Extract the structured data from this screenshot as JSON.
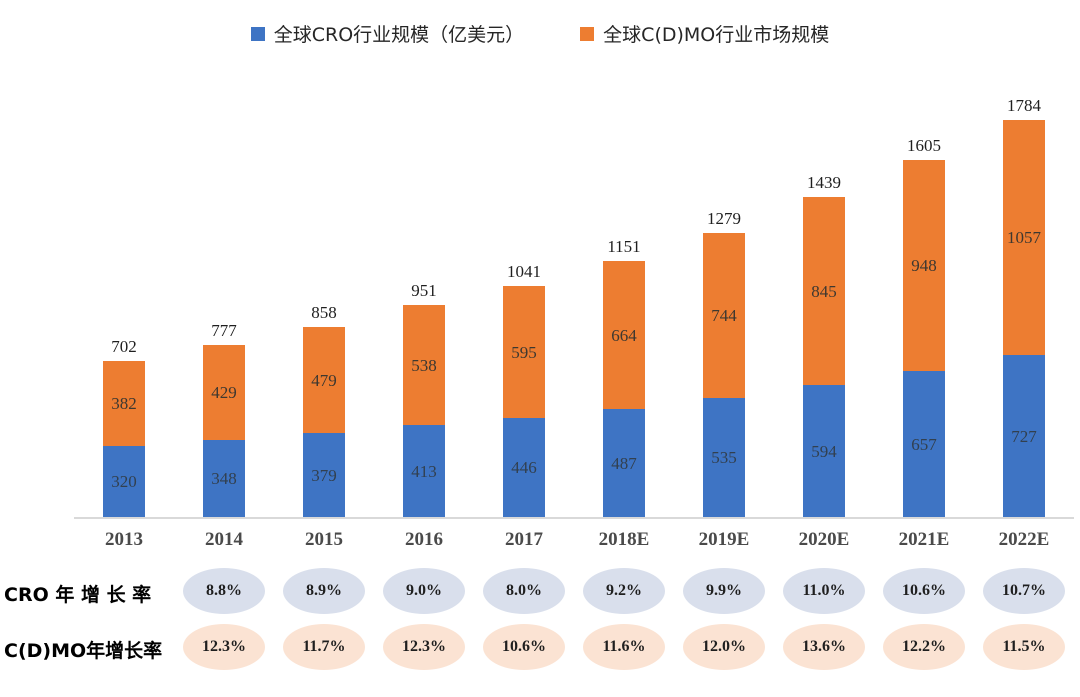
{
  "legend": {
    "items": [
      {
        "name": "cro",
        "label": "全球CRO行业规模（亿美元）",
        "color": "#3E74C4"
      },
      {
        "name": "cdmo",
        "label": "全球C(D)MO行业市场规模",
        "color": "#ED7D31"
      }
    ]
  },
  "chart_data": {
    "type": "bar",
    "stacked": true,
    "grid": false,
    "legend_position": "top",
    "categories": [
      "2013",
      "2014",
      "2015",
      "2016",
      "2017",
      "2018E",
      "2019E",
      "2020E",
      "2021E",
      "2022E"
    ],
    "series": [
      {
        "name": "全球CRO行业规模（亿美元）",
        "color": "#3E74C4",
        "values": [
          320,
          348,
          379,
          413,
          446,
          487,
          535,
          594,
          657,
          727
        ]
      },
      {
        "name": "全球C(D)MO行业市场规模",
        "color": "#ED7D31",
        "values": [
          382,
          429,
          479,
          538,
          595,
          664,
          744,
          845,
          948,
          1057
        ]
      }
    ],
    "totals": [
      702,
      777,
      858,
      951,
      1041,
      1151,
      1279,
      1439,
      1605,
      1784
    ],
    "ylim": [
      0,
      1800
    ],
    "ylabel": "",
    "xlabel": ""
  },
  "growth_rows": [
    {
      "label": "CRO 年 增  长 率",
      "bubble_color": "#D9DFEC",
      "values": [
        "",
        "8.8%",
        "8.9%",
        "9.0%",
        "8.0%",
        "9.2%",
        "9.9%",
        "11.0%",
        "10.6%",
        "10.7%"
      ]
    },
    {
      "label": "C(D)MO年增长率",
      "bubble_color": "#FBE3D3",
      "values": [
        "",
        "12.3%",
        "11.7%",
        "12.3%",
        "10.6%",
        "11.6%",
        "12.0%",
        "13.6%",
        "12.2%",
        "11.5%"
      ]
    }
  ],
  "colors": {
    "cro_bar": "#3E74C4",
    "cdmo_bar": "#ED7D31",
    "cro_bubble": "#D9DFEC",
    "cdmo_bubble": "#FBE3D3",
    "axis_line": "#d9d9d9"
  }
}
